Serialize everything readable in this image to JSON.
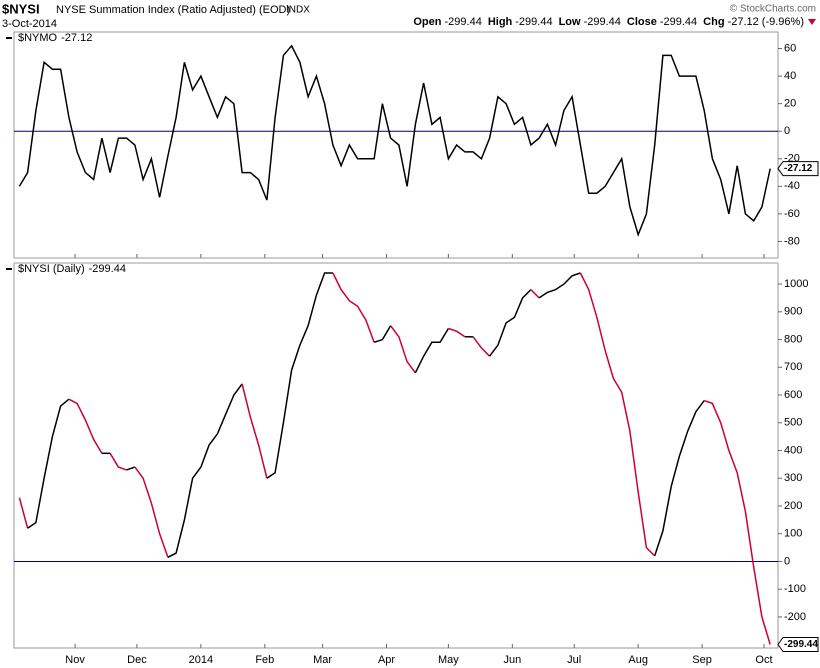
{
  "header": {
    "symbol": "$NYSI",
    "name": "NYSE Summation Index (Ratio Adjusted) (EOD)",
    "exchange": "INDX",
    "date": "3-Oct-2014",
    "source": "© StockCharts.com",
    "quote": [
      {
        "label": "Open",
        "value": -299.44
      },
      {
        "label": "High",
        "value": -299.44
      },
      {
        "label": "Low",
        "value": -299.44
      },
      {
        "label": "Close",
        "value": -299.44
      },
      {
        "label": "Chg",
        "value": "-27.12 (-9.96%)"
      }
    ]
  },
  "chart_data": [
    {
      "type": "line",
      "reference_line": 0,
      "xlim": [
        1.4,
        371.8
      ],
      "ylim": [
        -92,
        72
      ],
      "yticks": [
        60,
        40,
        20,
        0,
        -20,
        -40,
        -60,
        -80
      ],
      "x": [
        4,
        8,
        12,
        16,
        20,
        24,
        28,
        32,
        36,
        40,
        44,
        48,
        52,
        56,
        60,
        64,
        68,
        72,
        76,
        80,
        84,
        88,
        92,
        96,
        100,
        104,
        108,
        112,
        116,
        120,
        124,
        128,
        132,
        136,
        140,
        144,
        148,
        152,
        156,
        160,
        164,
        168,
        172,
        176,
        180,
        184,
        188,
        192,
        196,
        200,
        204,
        208,
        212,
        216,
        220,
        224,
        228,
        232,
        236,
        240,
        244,
        248,
        252,
        256,
        260,
        264,
        268,
        272,
        276,
        280,
        284,
        288,
        292,
        296,
        300,
        304,
        308,
        312,
        316,
        320,
        324,
        328,
        332,
        336,
        340,
        344,
        348,
        352,
        356,
        360,
        364,
        368
      ],
      "series": [
        {
          "name": "$NYMO",
          "color": "#000000",
          "values": [
            -40,
            -30,
            15,
            50,
            45,
            45,
            10,
            -15,
            -30,
            -35,
            -5,
            -30,
            -5,
            -5,
            -10,
            -35,
            -20,
            -48,
            -18,
            10,
            50,
            30,
            40,
            25,
            10,
            25,
            20,
            -30,
            -30,
            -35,
            -50,
            10,
            55,
            62,
            50,
            25,
            40,
            20,
            -10,
            -25,
            -10,
            -20,
            -20,
            -20,
            20,
            -5,
            -10,
            -40,
            5,
            35,
            5,
            10,
            -20,
            -10,
            -15,
            -15,
            -20,
            -5,
            25,
            20,
            5,
            10,
            -10,
            -5,
            5,
            -10,
            15,
            25,
            -10,
            -45,
            -45,
            -40,
            -30,
            -20,
            -55,
            -75,
            -60,
            -10,
            55,
            55,
            40,
            40,
            40,
            15,
            -20,
            -35,
            -60,
            -25,
            -60,
            -65,
            -55,
            -27.12
          ]
        }
      ]
    },
    {
      "type": "line",
      "reference_line": 0,
      "xlim": [
        1.4,
        371.8
      ],
      "ylim": [
        -312,
        1076
      ],
      "yticks": [
        1000,
        900,
        800,
        700,
        600,
        500,
        400,
        300,
        200,
        100,
        0,
        -100,
        -200
      ],
      "xticks": [
        {
          "value": 31,
          "label": "Nov"
        },
        {
          "value": 61,
          "label": "Dec"
        },
        {
          "value": 92,
          "label": "2014"
        },
        {
          "value": 123,
          "label": "Feb"
        },
        {
          "value": 151,
          "label": "Mar"
        },
        {
          "value": 182,
          "label": "Apr"
        },
        {
          "value": 212,
          "label": "May"
        },
        {
          "value": 243,
          "label": "Jun"
        },
        {
          "value": 273,
          "label": "Jul"
        },
        {
          "value": 304,
          "label": "Aug"
        },
        {
          "value": 335,
          "label": "Sep"
        },
        {
          "value": 365,
          "label": "Oct"
        }
      ],
      "x": [
        4,
        8,
        12,
        16,
        20,
        24,
        28,
        32,
        36,
        40,
        44,
        48,
        52,
        56,
        60,
        64,
        68,
        72,
        76,
        80,
        84,
        88,
        92,
        96,
        100,
        104,
        108,
        112,
        116,
        120,
        124,
        128,
        132,
        136,
        140,
        144,
        148,
        152,
        156,
        160,
        164,
        168,
        172,
        176,
        180,
        184,
        188,
        192,
        196,
        200,
        204,
        208,
        212,
        216,
        220,
        224,
        228,
        232,
        236,
        240,
        244,
        248,
        252,
        256,
        260,
        264,
        268,
        272,
        276,
        280,
        284,
        288,
        292,
        296,
        300,
        304,
        308,
        312,
        316,
        320,
        324,
        328,
        332,
        336,
        340,
        344,
        348,
        352,
        356,
        360,
        364,
        368
      ],
      "series": [
        {
          "name": "$NYSI (Daily)",
          "up_color": "#000000",
          "down_color": "#cc0033",
          "values": [
            230,
            120,
            140,
            300,
            450,
            560,
            585,
            570,
            510,
            440,
            390,
            390,
            340,
            330,
            340,
            300,
            210,
            100,
            15,
            30,
            150,
            300,
            340,
            420,
            460,
            530,
            600,
            640,
            520,
            420,
            300,
            320,
            500,
            690,
            780,
            850,
            960,
            1040,
            1040,
            980,
            940,
            920,
            870,
            790,
            800,
            850,
            810,
            720,
            680,
            740,
            790,
            790,
            840,
            830,
            810,
            810,
            770,
            740,
            780,
            860,
            880,
            950,
            980,
            950,
            970,
            980,
            1000,
            1030,
            1040,
            980,
            880,
            760,
            660,
            610,
            470,
            250,
            50,
            20,
            110,
            270,
            380,
            470,
            540,
            580,
            570,
            500,
            400,
            320,
            180,
            -20,
            -200,
            -299.44
          ]
        }
      ]
    }
  ]
}
